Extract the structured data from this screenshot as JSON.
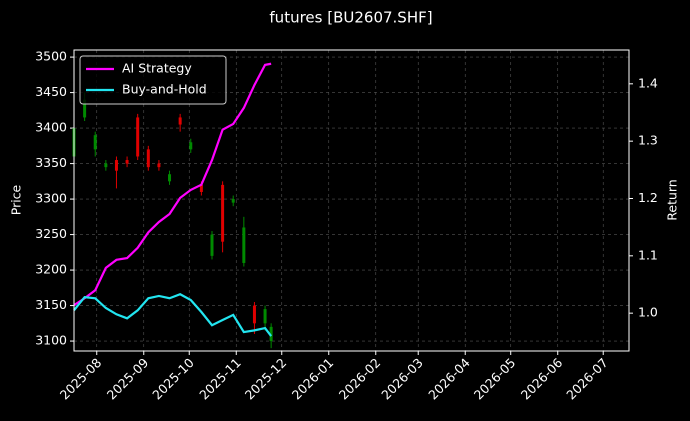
{
  "chart_data": {
    "type": "candlestick",
    "title": "futures [BU2607.SHF]",
    "y_label": "Price",
    "y2_label": "Return",
    "x": [
      "2025-07-17",
      "2025-07-24",
      "2025-07-31",
      "2025-08-07",
      "2025-08-14",
      "2025-08-21",
      "2025-08-28",
      "2025-09-04",
      "2025-09-11",
      "2025-09-18",
      "2025-09-25",
      "2025-10-02",
      "2025-10-09",
      "2025-10-16",
      "2025-10-23",
      "2025-10-30",
      "2025-11-06",
      "2025-11-13",
      "2025-11-20",
      "2025-11-24"
    ],
    "open": [
      3400,
      3440,
      3390,
      3350,
      3340,
      3350,
      3360,
      3345,
      3345,
      3335,
      3405,
      3380,
      3310,
      3250,
      3240,
      3300,
      3260,
      3125,
      3145,
      3120
    ],
    "high": [
      3420,
      3450,
      3395,
      3355,
      3360,
      3360,
      3420,
      3375,
      3355,
      3340,
      3420,
      3385,
      3325,
      3255,
      3325,
      3305,
      3275,
      3155,
      3150,
      3125
    ],
    "low": [
      3340,
      3410,
      3360,
      3340,
      3315,
      3345,
      3355,
      3340,
      3340,
      3320,
      3395,
      3365,
      3305,
      3215,
      3225,
      3290,
      3205,
      3110,
      3115,
      3090
    ],
    "close": [
      3360,
      3415,
      3370,
      3345,
      3355,
      3355,
      3415,
      3370,
      3350,
      3325,
      3415,
      3370,
      3320,
      3220,
      3320,
      3295,
      3210,
      3150,
      3125,
      3100
    ],
    "up_color": "#e00000",
    "down_color": "#008a00",
    "series": [
      {
        "name": "AI Strategy",
        "color": "#ff00ff",
        "axis": "y2",
        "values": [
          1.014,
          1.026,
          1.04,
          1.079,
          1.093,
          1.096,
          1.114,
          1.141,
          1.159,
          1.173,
          1.201,
          1.215,
          1.224,
          1.267,
          1.32,
          1.33,
          1.358,
          1.398,
          1.433,
          1.435
        ]
      },
      {
        "name": "Buy-and-Hold",
        "color": "#22e5f0",
        "axis": "y2",
        "values": [
          1.005,
          1.028,
          1.026,
          1.009,
          0.998,
          0.991,
          1.005,
          1.026,
          1.03,
          1.026,
          1.033,
          1.023,
          1.002,
          0.979,
          0.988,
          0.997,
          0.967,
          0.97,
          0.974,
          0.96
        ]
      }
    ],
    "xlim": [
      "2025-07-17",
      "2026-07-18"
    ],
    "xticks": [
      {
        "value": "2025-08-01",
        "label": "2025-08"
      },
      {
        "value": "2025-09-01",
        "label": "2025-09"
      },
      {
        "value": "2025-10-01",
        "label": "2025-10"
      },
      {
        "value": "2025-11-01",
        "label": "2025-11"
      },
      {
        "value": "2025-12-01",
        "label": "2025-12"
      },
      {
        "value": "2026-01-01",
        "label": "2026-01"
      },
      {
        "value": "2026-02-01",
        "label": "2026-02"
      },
      {
        "value": "2026-03-01",
        "label": "2026-03"
      },
      {
        "value": "2026-04-01",
        "label": "2026-04"
      },
      {
        "value": "2026-05-01",
        "label": "2026-05"
      },
      {
        "value": "2026-06-01",
        "label": "2026-06"
      },
      {
        "value": "2026-07-01",
        "label": "2026-07"
      }
    ],
    "ylim": [
      3086,
      3510
    ],
    "yticks": [
      3100,
      3150,
      3200,
      3250,
      3300,
      3350,
      3400,
      3450,
      3500
    ],
    "y2lim": [
      0.934,
      1.459
    ],
    "y2ticks": [
      {
        "value": 1,
        "label": "1.0"
      },
      1.1,
      1.2,
      1.3,
      1.4
    ],
    "grid": true,
    "legend": "upper left"
  }
}
